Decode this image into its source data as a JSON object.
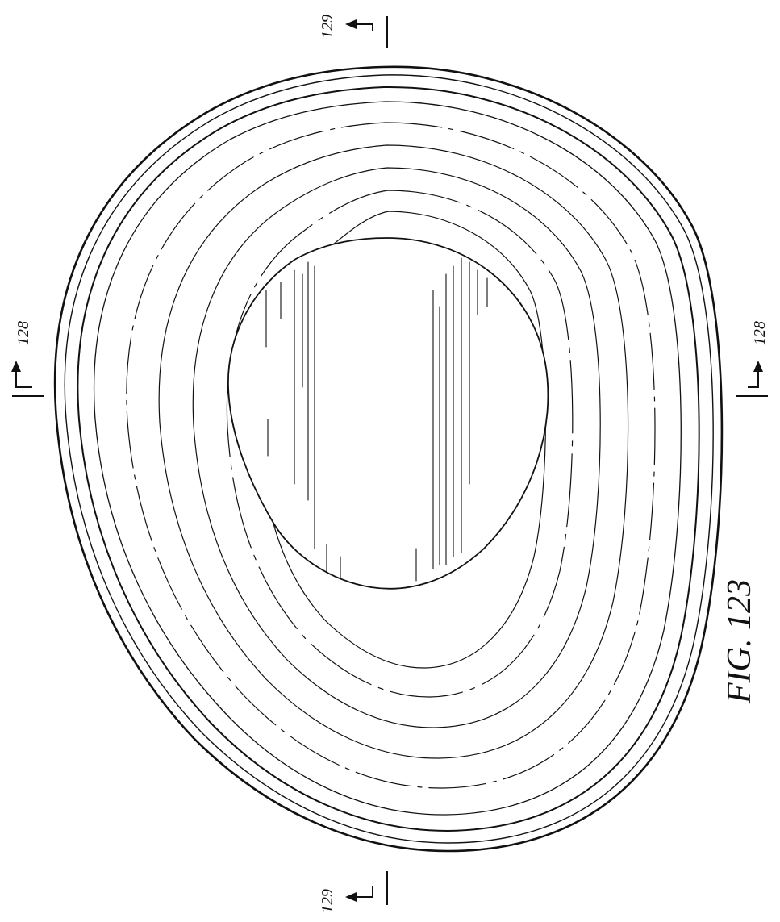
{
  "figure": {
    "label": "FIG. 123"
  },
  "section_marks": {
    "top": "129",
    "bottom": "129",
    "left": "128",
    "right": "128"
  },
  "colors": {
    "ink": "#111111",
    "paper": "#ffffff"
  }
}
